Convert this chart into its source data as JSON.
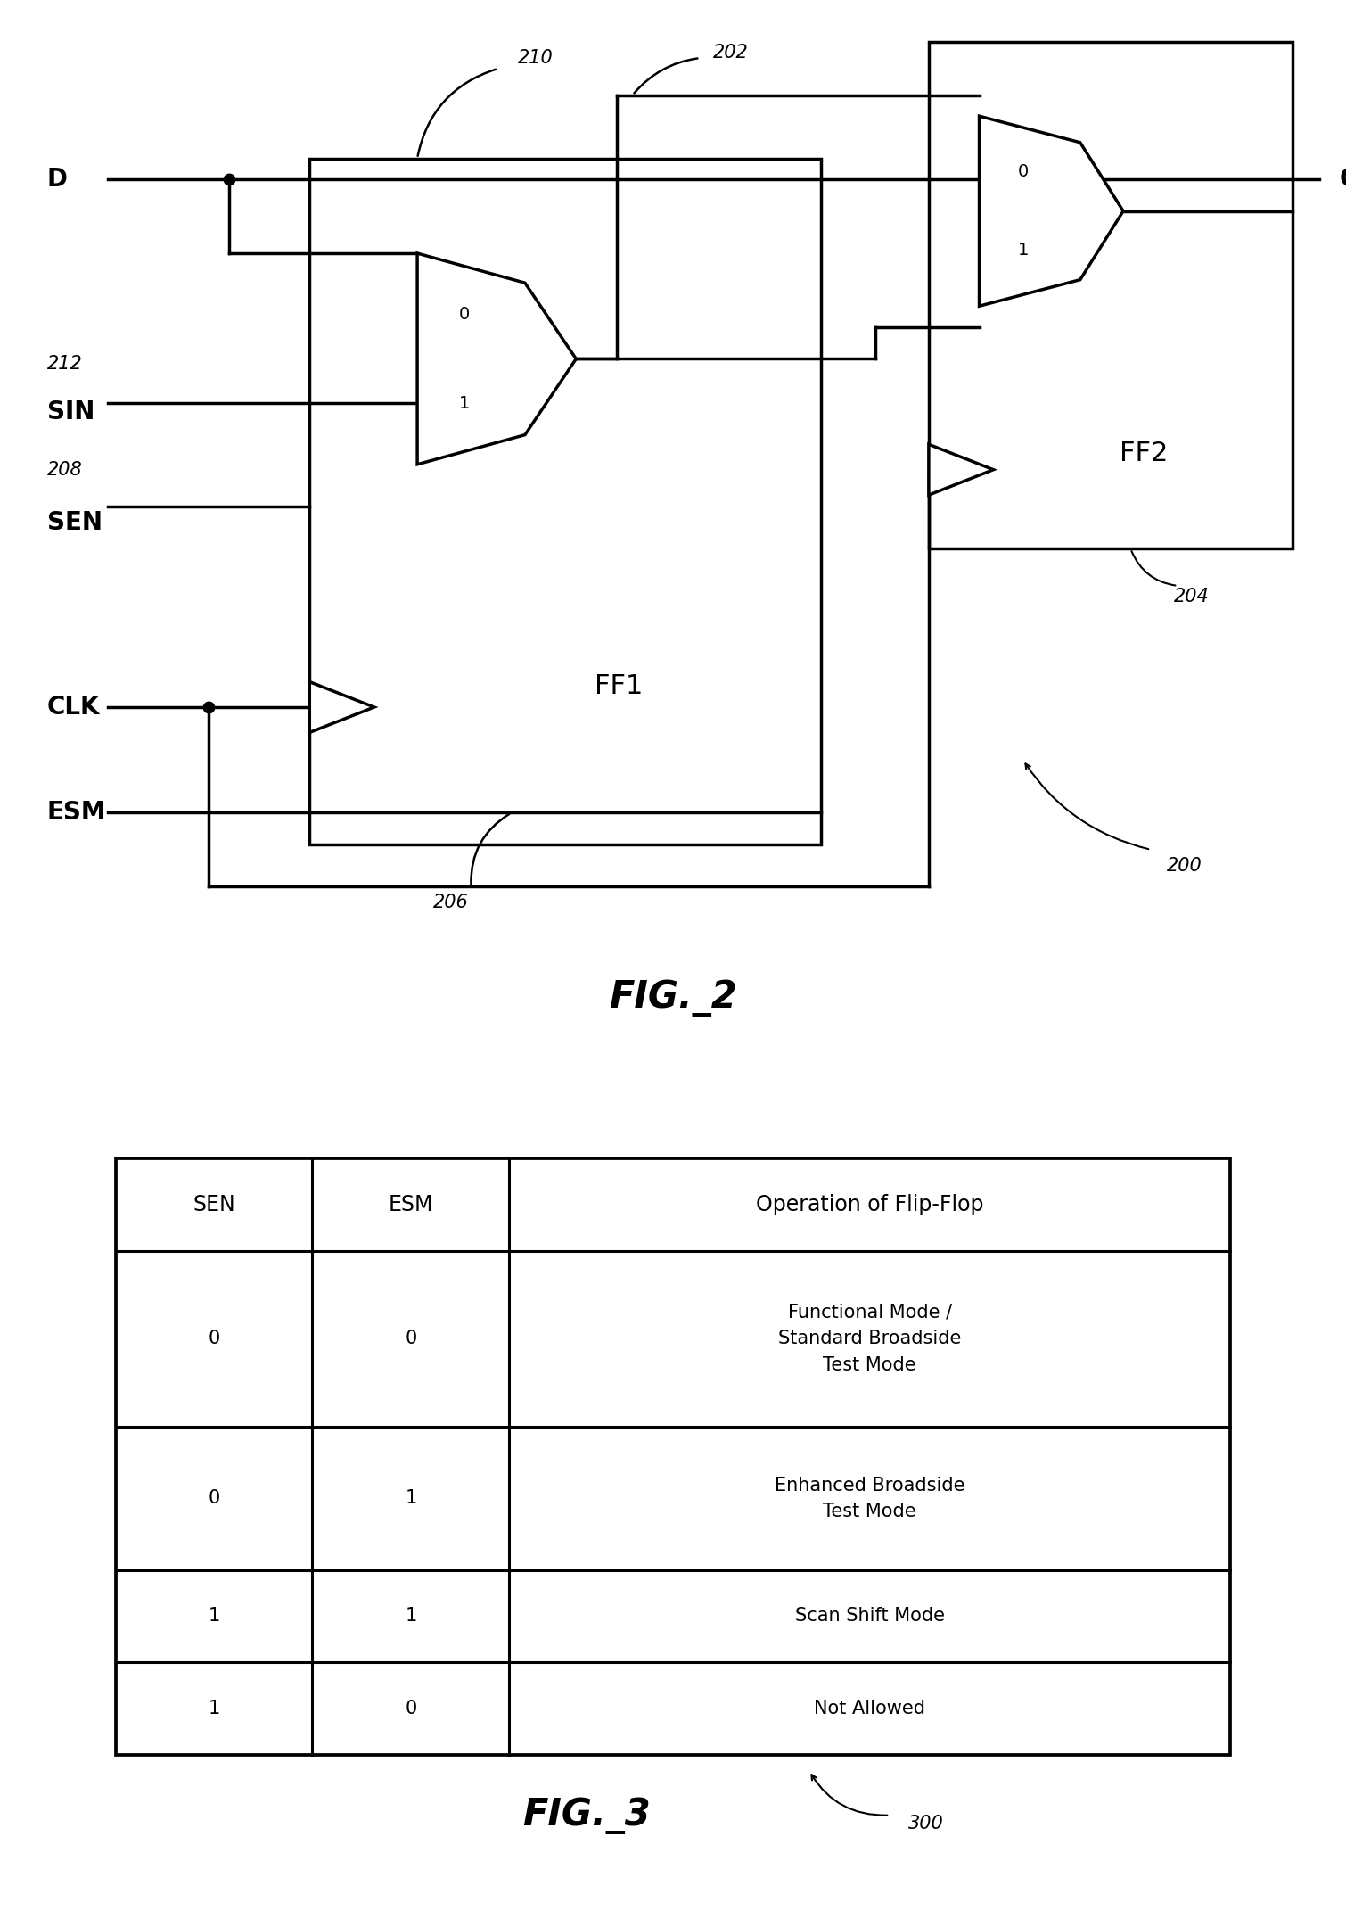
{
  "fig_width": 15.1,
  "fig_height": 21.52,
  "bg_color": "#ffffff",
  "line_color": "#000000",
  "fig2_title": "FIG._2",
  "fig3_title": "FIG._3",
  "table_headers": [
    "SEN",
    "ESM",
    "Operation of Flip-Flop"
  ],
  "table_rows": [
    [
      "0",
      "0",
      "Functional Mode /\nStandard Broadside\nTest Mode"
    ],
    [
      "0",
      "1",
      "Enhanced Broadside\nTest Mode"
    ],
    [
      "1",
      "1",
      "Scan Shift Mode"
    ],
    [
      "1",
      "0",
      "Not Allowed"
    ]
  ],
  "label_200": "200",
  "label_202": "202",
  "label_204": "204",
  "label_206": "206",
  "label_208": "208",
  "label_210": "210",
  "label_212": "212",
  "label_300": "300",
  "label_D": "D",
  "label_Q": "Q",
  "label_SIN": "SIN",
  "label_SEN": "SEN",
  "label_CLK": "CLK",
  "label_ESM": "ESM",
  "label_FF1": "FF1",
  "label_FF2": "FF2",
  "label_0": "0",
  "label_1": "1"
}
